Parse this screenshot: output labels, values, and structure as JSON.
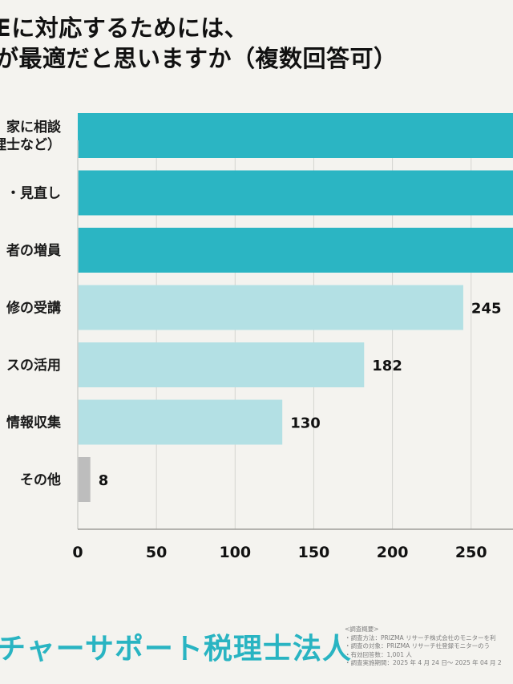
{
  "title": {
    "line1": "Eに対応するためには、",
    "line2": "が最適だと思いますか（複数回答可）"
  },
  "chart_data": {
    "type": "bar",
    "orientation": "horizontal",
    "categories": [
      "家に相談\n理士など）",
      "・見直し",
      "者の増員",
      "修の受講",
      "スの活用",
      "情報収集",
      "その他"
    ],
    "values": [
      null,
      null,
      null,
      245,
      182,
      130,
      8
    ],
    "value_labels": [
      "",
      "",
      "",
      "245",
      "182",
      "130",
      "8"
    ],
    "bar_colors": [
      "#2bb5c3",
      "#2bb5c3",
      "#2bb5c3",
      "#b3e0e4",
      "#b3e0e4",
      "#b3e0e4",
      "#bdbdbd"
    ],
    "xticks": [
      0,
      50,
      100,
      150,
      200,
      250
    ],
    "xlim": [
      0,
      275
    ],
    "grid": true,
    "title": "",
    "xlabel": "",
    "ylabel": ""
  },
  "footer": {
    "brand": "チャーサポート税理士法人",
    "notes": [
      "<調査概要>",
      "・調査方法：PRIZMA リサーチ株式会社のモニターを利",
      "・調査の対象：PRIZMA リサーチ社登録モニターのう",
      "・有効回答数：1,001 人",
      "・調査実施期間：2025 年 4 月 24 日～ 2025 年 04 月 2"
    ]
  }
}
